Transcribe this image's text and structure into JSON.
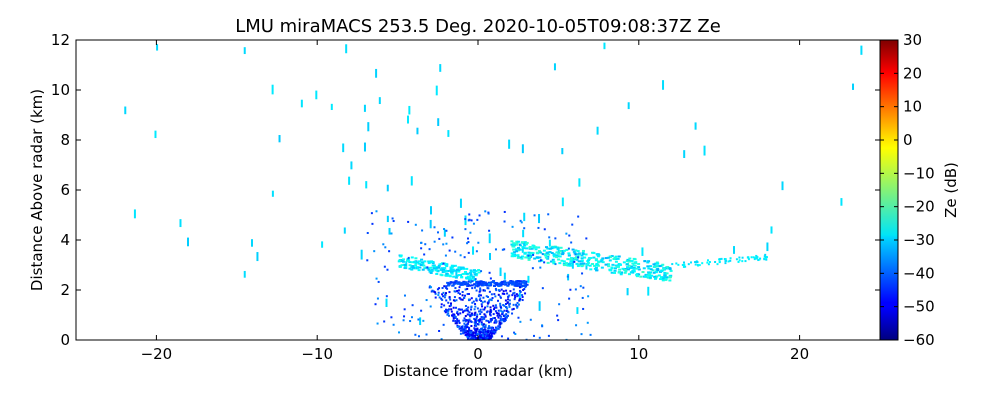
{
  "chart_data": {
    "type": "heatmap",
    "title": "LMU miraMACS 253.5 Deg. 2020-10-05T09:08:37Z  Ze",
    "xlabel": "Distance from radar (km)",
    "ylabel": "Distance Above radar  (km)",
    "xlim": [
      -25,
      25
    ],
    "ylim": [
      0,
      12
    ],
    "xticks": [
      -20,
      -10,
      0,
      10,
      20
    ],
    "xtick_labels": [
      "−20",
      "−10",
      "0",
      "10",
      "20"
    ],
    "yticks": [
      0,
      2,
      4,
      6,
      8,
      10,
      12
    ],
    "ytick_labels": [
      "0",
      "2",
      "4",
      "6",
      "8",
      "10",
      "12"
    ],
    "colorbar": {
      "label": "Ze (dB)",
      "range": [
        -60,
        30
      ],
      "colormap": "jet",
      "ticks": [
        30,
        20,
        10,
        0,
        -10,
        -20,
        -30,
        -40,
        -50,
        -60
      ],
      "tick_labels": [
        "30",
        "20",
        "10",
        "0",
        "−10",
        "−20",
        "−30",
        "−40",
        "−50",
        "−60"
      ]
    },
    "features": [
      {
        "name": "sparse noise cone",
        "ze_approx": -30
      },
      {
        "name": "cloud layer west",
        "x_range": [
          -5,
          0
        ],
        "height_range": [
          2.6,
          3.6
        ],
        "ze_approx": -28
      },
      {
        "name": "cloud layer east",
        "x_range": [
          2,
          12
        ],
        "height_range": [
          2.6,
          4.0
        ],
        "ze_approx": -27
      },
      {
        "name": "near-radar clutter",
        "x_range": [
          -4,
          4
        ],
        "height_range": [
          0,
          2.0
        ],
        "ze_approx": -48
      }
    ]
  }
}
